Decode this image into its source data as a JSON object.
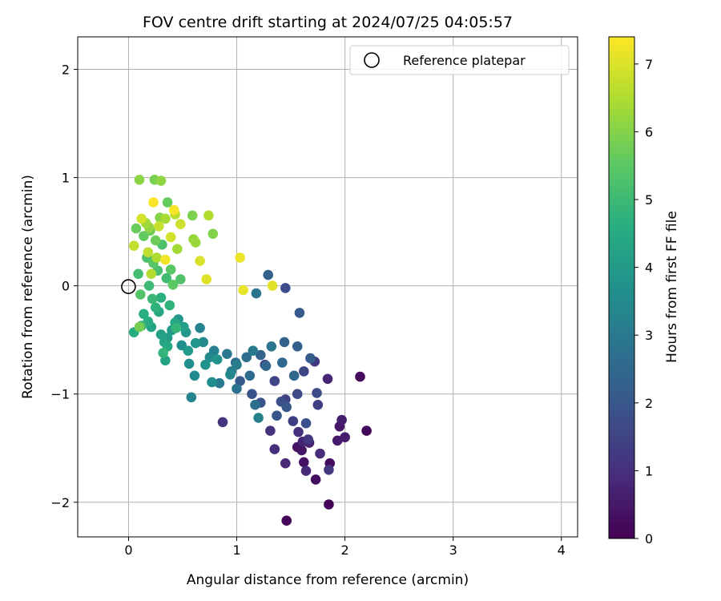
{
  "chart_data": {
    "type": "scatter",
    "title": "FOV centre drift starting at 2024/07/25 04:05:57",
    "xlabel": "Angular distance from reference (arcmin)",
    "ylabel": "Rotation from reference (arcmin)",
    "xlim": [
      -0.47,
      4.15
    ],
    "ylim": [
      -2.32,
      2.3
    ],
    "xticks": [
      0,
      1,
      2,
      3,
      4
    ],
    "xtick_labels": [
      "0",
      "1",
      "2",
      "3",
      "4"
    ],
    "yticks": [
      2,
      1,
      0,
      -1,
      -2
    ],
    "ytick_labels": [
      "2",
      "1",
      "0",
      "−1",
      "−2"
    ],
    "grid": true,
    "legend": {
      "position": "top-right",
      "entries": [
        {
          "label": "Reference platepar",
          "marker": "open-circle"
        }
      ]
    },
    "reference_point": {
      "x": 0,
      "y": 0
    },
    "colorbar": {
      "label": "Hours from first FF file",
      "colormap": "viridis",
      "min": 0,
      "max": 7.4,
      "ticks": [
        0,
        1,
        2,
        3,
        4,
        5,
        6,
        7
      ],
      "tick_labels": [
        "0",
        "1",
        "2",
        "3",
        "4",
        "5",
        "6",
        "7"
      ]
    },
    "series": [
      {
        "color_by": "hours",
        "points": [
          {
            "x": 1.85,
            "y": -2.02,
            "hours": 0.05
          },
          {
            "x": 1.46,
            "y": -2.17,
            "hours": 0.1
          },
          {
            "x": 2.2,
            "y": -1.34,
            "hours": 0.15
          },
          {
            "x": 2.14,
            "y": -0.84,
            "hours": 0.2
          },
          {
            "x": 1.86,
            "y": -1.64,
            "hours": 0.25
          },
          {
            "x": 1.73,
            "y": -1.79,
            "hours": 0.3
          },
          {
            "x": 1.62,
            "y": -1.63,
            "hours": 0.35
          },
          {
            "x": 1.56,
            "y": -1.49,
            "hours": 0.4
          },
          {
            "x": 1.6,
            "y": -1.52,
            "hours": 0.45
          },
          {
            "x": 1.95,
            "y": -1.3,
            "hours": 0.5
          },
          {
            "x": 1.93,
            "y": -1.43,
            "hours": 0.55
          },
          {
            "x": 2.0,
            "y": -1.4,
            "hours": 0.6
          },
          {
            "x": 1.97,
            "y": -1.24,
            "hours": 0.65
          },
          {
            "x": 1.67,
            "y": -1.45,
            "hours": 0.7
          },
          {
            "x": 1.61,
            "y": -1.44,
            "hours": 0.75
          },
          {
            "x": 1.84,
            "y": -0.86,
            "hours": 0.8
          },
          {
            "x": 1.45,
            "y": -1.64,
            "hours": 0.85
          },
          {
            "x": 1.64,
            "y": -1.71,
            "hours": 0.9
          },
          {
            "x": 1.77,
            "y": -1.55,
            "hours": 0.95
          },
          {
            "x": 1.35,
            "y": -1.51,
            "hours": 1.0
          },
          {
            "x": 1.57,
            "y": -1.35,
            "hours": 1.05
          },
          {
            "x": 1.31,
            "y": -1.34,
            "hours": 1.1
          },
          {
            "x": 0.87,
            "y": -1.26,
            "hours": 1.15
          },
          {
            "x": 1.66,
            "y": -1.42,
            "hours": 1.2
          },
          {
            "x": 1.85,
            "y": -1.7,
            "hours": 1.25
          },
          {
            "x": 1.72,
            "y": -0.7,
            "hours": 1.3
          },
          {
            "x": 1.52,
            "y": -1.25,
            "hours": 1.35
          },
          {
            "x": 1.75,
            "y": -1.1,
            "hours": 1.4
          },
          {
            "x": 1.45,
            "y": -1.05,
            "hours": 1.45
          },
          {
            "x": 1.26,
            "y": -0.73,
            "hours": 1.5
          },
          {
            "x": 1.35,
            "y": -0.88,
            "hours": 1.55
          },
          {
            "x": 1.62,
            "y": -0.79,
            "hours": 1.6
          },
          {
            "x": 1.56,
            "y": -1.0,
            "hours": 1.65
          },
          {
            "x": 1.74,
            "y": -0.99,
            "hours": 1.7
          },
          {
            "x": 1.45,
            "y": -0.02,
            "hours": 1.75
          },
          {
            "x": 1.41,
            "y": -1.07,
            "hours": 1.8
          },
          {
            "x": 1.64,
            "y": -1.27,
            "hours": 1.85
          },
          {
            "x": 1.22,
            "y": -1.08,
            "hours": 1.9
          },
          {
            "x": 1.14,
            "y": -1.0,
            "hours": 1.95
          },
          {
            "x": 1.37,
            "y": -1.2,
            "hours": 2.0
          },
          {
            "x": 1.46,
            "y": -1.12,
            "hours": 2.05
          },
          {
            "x": 1.03,
            "y": -0.88,
            "hours": 2.1
          },
          {
            "x": 1.58,
            "y": -0.25,
            "hours": 2.15
          },
          {
            "x": 1.68,
            "y": -0.67,
            "hours": 2.2
          },
          {
            "x": 1.56,
            "y": -0.56,
            "hours": 2.25
          },
          {
            "x": 1.29,
            "y": 0.1,
            "hours": 2.3
          },
          {
            "x": 1.44,
            "y": -0.52,
            "hours": 2.35
          },
          {
            "x": 1.22,
            "y": -0.64,
            "hours": 2.4
          },
          {
            "x": 1.27,
            "y": -0.74,
            "hours": 2.45
          },
          {
            "x": 1.53,
            "y": -0.83,
            "hours": 2.5
          },
          {
            "x": 1.42,
            "y": -0.71,
            "hours": 2.55
          },
          {
            "x": 1.12,
            "y": -0.83,
            "hours": 2.6
          },
          {
            "x": 1.09,
            "y": -0.66,
            "hours": 2.65
          },
          {
            "x": 0.99,
            "y": -0.71,
            "hours": 2.7
          },
          {
            "x": 1.17,
            "y": -1.1,
            "hours": 2.75
          },
          {
            "x": 1.0,
            "y": -0.95,
            "hours": 2.8
          },
          {
            "x": 1.18,
            "y": -0.07,
            "hours": 2.85
          },
          {
            "x": 1.32,
            "y": -0.56,
            "hours": 2.9
          },
          {
            "x": 0.91,
            "y": -0.63,
            "hours": 2.95
          },
          {
            "x": 1.15,
            "y": -0.6,
            "hours": 3.0
          },
          {
            "x": 0.84,
            "y": -0.9,
            "hours": 3.05
          },
          {
            "x": 1.0,
            "y": -0.73,
            "hours": 3.1
          },
          {
            "x": 0.95,
            "y": -0.79,
            "hours": 3.15
          },
          {
            "x": 0.79,
            "y": -0.6,
            "hours": 3.2
          },
          {
            "x": 1.2,
            "y": -1.22,
            "hours": 3.25
          },
          {
            "x": 0.66,
            "y": -0.39,
            "hours": 3.3
          },
          {
            "x": 0.58,
            "y": -1.03,
            "hours": 3.35
          },
          {
            "x": 0.94,
            "y": -0.82,
            "hours": 3.4
          },
          {
            "x": 0.69,
            "y": -0.52,
            "hours": 3.45
          },
          {
            "x": 0.75,
            "y": -0.66,
            "hours": 3.5
          },
          {
            "x": 0.61,
            "y": -0.83,
            "hours": 3.55
          },
          {
            "x": 0.77,
            "y": -0.89,
            "hours": 3.6
          },
          {
            "x": 0.56,
            "y": -0.72,
            "hours": 3.65
          },
          {
            "x": 0.49,
            "y": -0.55,
            "hours": 3.7
          },
          {
            "x": 0.71,
            "y": -0.73,
            "hours": 3.75
          },
          {
            "x": 0.82,
            "y": -0.68,
            "hours": 3.8
          },
          {
            "x": 0.62,
            "y": -0.53,
            "hours": 3.85
          },
          {
            "x": 0.46,
            "y": -0.31,
            "hours": 3.9
          },
          {
            "x": 0.53,
            "y": -0.43,
            "hours": 3.95
          },
          {
            "x": 0.55,
            "y": -0.6,
            "hours": 4.0
          },
          {
            "x": 0.4,
            "y": -0.41,
            "hours": 4.05
          },
          {
            "x": 0.36,
            "y": -0.48,
            "hours": 4.1
          },
          {
            "x": 0.51,
            "y": -0.38,
            "hours": 4.15
          },
          {
            "x": 0.3,
            "y": -0.45,
            "hours": 4.2
          },
          {
            "x": 0.34,
            "y": -0.69,
            "hours": 4.25
          },
          {
            "x": 0.33,
            "y": -0.52,
            "hours": 4.3
          },
          {
            "x": 0.21,
            "y": -0.38,
            "hours": 4.35
          },
          {
            "x": 0.43,
            "y": -0.34,
            "hours": 4.4
          },
          {
            "x": 0.28,
            "y": -0.24,
            "hours": 4.45
          },
          {
            "x": 0.36,
            "y": -0.56,
            "hours": 4.5
          },
          {
            "x": 0.18,
            "y": -0.33,
            "hours": 4.55
          },
          {
            "x": 0.05,
            "y": -0.43,
            "hours": 4.6
          },
          {
            "x": 0.14,
            "y": -0.26,
            "hours": 4.65
          },
          {
            "x": 0.3,
            "y": -0.11,
            "hours": 4.7
          },
          {
            "x": 0.25,
            "y": -0.2,
            "hours": 4.75
          },
          {
            "x": 0.38,
            "y": -0.18,
            "hours": 4.8
          },
          {
            "x": 0.32,
            "y": -0.62,
            "hours": 4.85
          },
          {
            "x": 0.44,
            "y": -0.39,
            "hours": 4.9
          },
          {
            "x": 0.22,
            "y": -0.12,
            "hours": 4.95
          },
          {
            "x": 0.12,
            "y": -0.37,
            "hours": 5.0
          },
          {
            "x": 0.19,
            "y": 0.0,
            "hours": 5.05
          },
          {
            "x": 0.35,
            "y": 0.07,
            "hours": 5.1
          },
          {
            "x": 0.09,
            "y": 0.11,
            "hours": 5.15
          },
          {
            "x": 0.27,
            "y": 0.14,
            "hours": 5.2
          },
          {
            "x": 0.17,
            "y": 0.26,
            "hours": 5.25
          },
          {
            "x": 0.31,
            "y": 0.38,
            "hours": 5.3
          },
          {
            "x": 0.48,
            "y": 0.06,
            "hours": 5.35
          },
          {
            "x": 0.11,
            "y": -0.08,
            "hours": 5.4
          },
          {
            "x": 0.23,
            "y": 0.21,
            "hours": 5.45
          },
          {
            "x": 0.39,
            "y": 0.15,
            "hours": 5.5
          },
          {
            "x": 0.41,
            "y": 0.01,
            "hours": 5.55
          },
          {
            "x": 0.14,
            "y": 0.46,
            "hours": 5.6
          },
          {
            "x": 0.36,
            "y": 0.77,
            "hours": 5.65
          },
          {
            "x": 0.07,
            "y": 0.53,
            "hours": 5.7
          },
          {
            "x": 0.25,
            "y": 0.42,
            "hours": 5.75
          },
          {
            "x": 0.2,
            "y": 0.51,
            "hours": 5.8
          },
          {
            "x": 0.1,
            "y": -0.38,
            "hours": 5.85
          },
          {
            "x": 0.24,
            "y": 0.98,
            "hours": 5.9
          },
          {
            "x": 0.59,
            "y": 0.65,
            "hours": 5.95
          },
          {
            "x": 0.78,
            "y": 0.48,
            "hours": 6.0
          },
          {
            "x": 0.29,
            "y": 0.63,
            "hours": 6.05
          },
          {
            "x": 0.1,
            "y": 0.98,
            "hours": 6.1
          },
          {
            "x": 0.3,
            "y": 0.97,
            "hours": 6.15
          },
          {
            "x": 0.19,
            "y": 0.54,
            "hours": 6.2
          },
          {
            "x": 0.6,
            "y": 0.43,
            "hours": 6.25
          },
          {
            "x": 0.62,
            "y": 0.4,
            "hours": 6.3
          },
          {
            "x": 0.16,
            "y": 0.58,
            "hours": 6.35
          },
          {
            "x": 0.45,
            "y": 0.34,
            "hours": 6.4
          },
          {
            "x": 0.34,
            "y": 0.62,
            "hours": 6.45
          },
          {
            "x": 0.26,
            "y": 0.26,
            "hours": 6.5
          },
          {
            "x": 0.74,
            "y": 0.65,
            "hours": 6.55
          },
          {
            "x": 0.21,
            "y": 0.11,
            "hours": 6.6
          },
          {
            "x": 0.43,
            "y": 0.66,
            "hours": 6.65
          },
          {
            "x": 0.18,
            "y": 0.31,
            "hours": 6.7
          },
          {
            "x": 0.05,
            "y": 0.37,
            "hours": 6.75
          },
          {
            "x": 0.28,
            "y": 0.55,
            "hours": 6.8
          },
          {
            "x": 0.48,
            "y": 0.57,
            "hours": 6.85
          },
          {
            "x": 0.39,
            "y": 0.45,
            "hours": 6.9
          },
          {
            "x": 0.12,
            "y": 0.62,
            "hours": 6.95
          },
          {
            "x": 0.66,
            "y": 0.23,
            "hours": 7.0
          },
          {
            "x": 0.72,
            "y": 0.06,
            "hours": 7.05
          },
          {
            "x": 1.33,
            "y": 0.0,
            "hours": 7.1
          },
          {
            "x": 1.06,
            "y": -0.04,
            "hours": 7.15
          },
          {
            "x": 1.03,
            "y": 0.26,
            "hours": 7.2
          },
          {
            "x": 0.34,
            "y": 0.24,
            "hours": 7.25
          },
          {
            "x": 0.42,
            "y": 0.7,
            "hours": 7.3
          },
          {
            "x": 0.23,
            "y": 0.77,
            "hours": 7.35
          }
        ]
      }
    ]
  }
}
